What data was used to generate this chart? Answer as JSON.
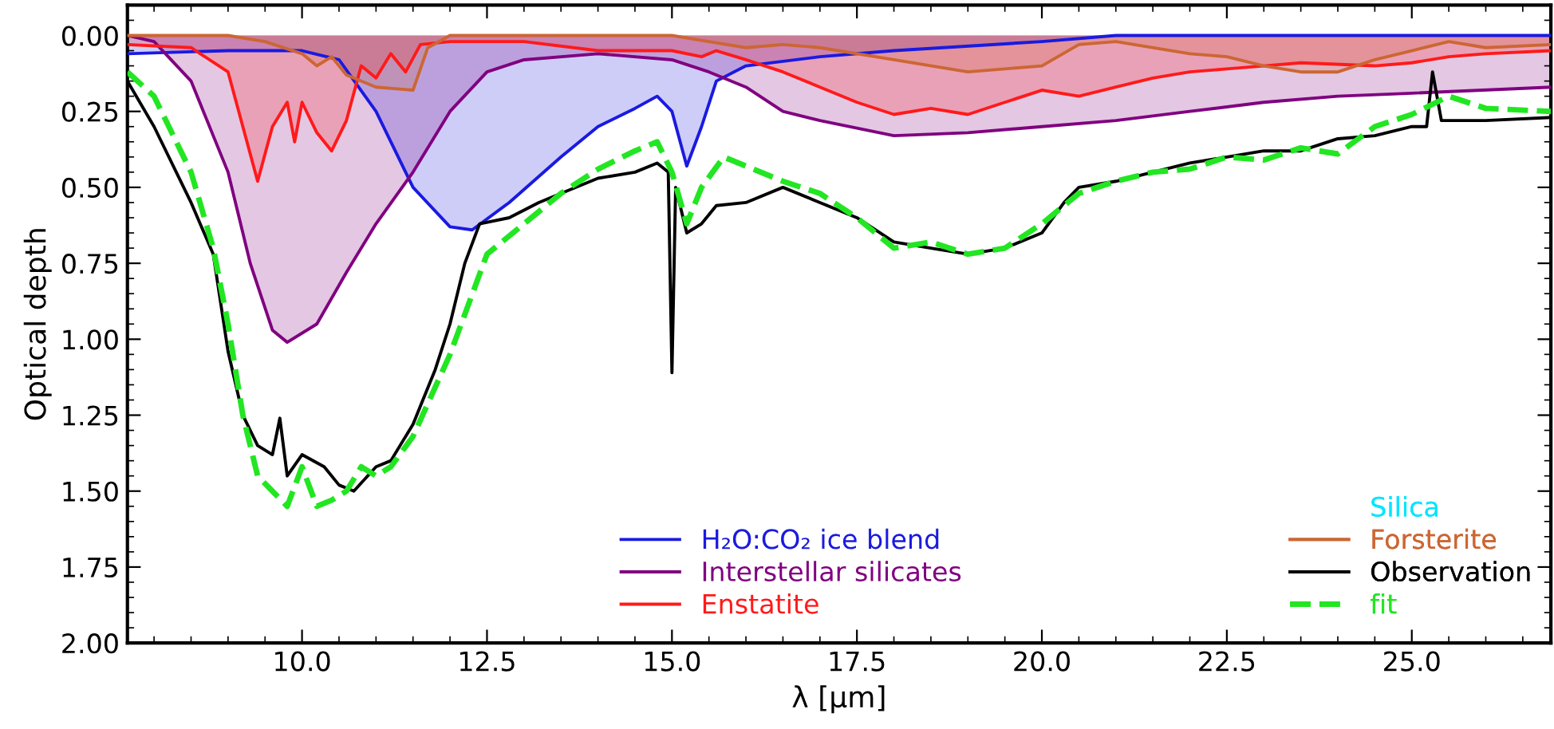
{
  "chart_data": {
    "type": "line",
    "xlabel": "λ [μm]",
    "ylabel": "Optical depth",
    "xlim": [
      7.64,
      26.88
    ],
    "ylim": [
      2.0,
      -0.1
    ],
    "xticks": [
      {
        "value": 10,
        "label": "10.0"
      },
      {
        "value": 12.5,
        "label": "12.5"
      },
      {
        "value": 15,
        "label": "15.0"
      },
      {
        "value": 17.5,
        "label": "17.5"
      },
      {
        "value": 20,
        "label": "20.0"
      },
      {
        "value": 22.5,
        "label": "22.5"
      },
      {
        "value": 25,
        "label": "25.0"
      }
    ],
    "yticks": [
      {
        "value": 0,
        "label": "0.00"
      },
      {
        "value": 0.25,
        "label": "0.25"
      },
      {
        "value": 0.5,
        "label": "0.50"
      },
      {
        "value": 0.75,
        "label": "0.75"
      },
      {
        "value": 1,
        "label": "1.00"
      },
      {
        "value": 1.25,
        "label": "1.25"
      },
      {
        "value": 1.5,
        "label": "1.50"
      },
      {
        "value": 1.75,
        "label": "1.75"
      },
      {
        "value": 2,
        "label": "2.00"
      }
    ],
    "grid": false,
    "legend": "bottom",
    "series": [
      {
        "name": "H₂O:CO₂ ice blend",
        "type": "area",
        "color": "#1a1ae0",
        "x": [
          7.64,
          9.0,
          10.0,
          10.5,
          11.0,
          11.5,
          12.0,
          12.3,
          12.8,
          13.5,
          14.0,
          14.5,
          14.8,
          15.0,
          15.2,
          15.4,
          15.6,
          16.0,
          17.0,
          18.0,
          20.0,
          21.0,
          26.88
        ],
        "values": [
          0.06,
          0.05,
          0.05,
          0.08,
          0.25,
          0.5,
          0.63,
          0.64,
          0.55,
          0.4,
          0.3,
          0.24,
          0.2,
          0.25,
          0.43,
          0.3,
          0.15,
          0.1,
          0.07,
          0.05,
          0.02,
          0.0,
          0.0
        ]
      },
      {
        "name": "Interstellar silicates",
        "type": "area",
        "color": "#800080",
        "x": [
          7.64,
          8.0,
          8.5,
          9.0,
          9.3,
          9.6,
          9.8,
          10.2,
          10.6,
          11.0,
          11.5,
          12.0,
          12.5,
          13.0,
          14.0,
          15.0,
          15.5,
          16.0,
          16.5,
          17.0,
          18.0,
          19.0,
          20.0,
          21.0,
          22.0,
          23.0,
          24.0,
          25.0,
          26.88
        ],
        "values": [
          0.0,
          0.02,
          0.15,
          0.45,
          0.75,
          0.97,
          1.01,
          0.95,
          0.78,
          0.62,
          0.45,
          0.25,
          0.12,
          0.08,
          0.06,
          0.08,
          0.12,
          0.17,
          0.25,
          0.28,
          0.33,
          0.32,
          0.3,
          0.28,
          0.25,
          0.22,
          0.2,
          0.19,
          0.17
        ]
      },
      {
        "name": "Enstatite",
        "type": "area",
        "color": "#ff1a1a",
        "x": [
          7.64,
          8.5,
          9.0,
          9.2,
          9.4,
          9.6,
          9.8,
          9.9,
          10.0,
          10.2,
          10.4,
          10.6,
          10.8,
          11.0,
          11.2,
          11.4,
          11.6,
          12.0,
          13.0,
          14.0,
          15.0,
          15.4,
          15.6,
          16.0,
          16.5,
          17.0,
          17.5,
          18.0,
          18.5,
          19.0,
          19.5,
          20.0,
          20.5,
          21.0,
          21.5,
          22.0,
          22.5,
          23.0,
          23.5,
          24.5,
          25.0,
          25.5,
          26.0,
          26.88
        ],
        "values": [
          0.03,
          0.04,
          0.12,
          0.3,
          0.48,
          0.3,
          0.22,
          0.35,
          0.22,
          0.32,
          0.38,
          0.28,
          0.1,
          0.14,
          0.06,
          0.12,
          0.03,
          0.02,
          0.02,
          0.05,
          0.05,
          0.07,
          0.05,
          0.08,
          0.12,
          0.17,
          0.22,
          0.26,
          0.24,
          0.26,
          0.22,
          0.18,
          0.2,
          0.17,
          0.14,
          0.12,
          0.11,
          0.1,
          0.09,
          0.1,
          0.09,
          0.07,
          0.06,
          0.05
        ]
      },
      {
        "name": "Silica",
        "type": "area",
        "color": "#00e5ff"
      },
      {
        "name": "Forsterite",
        "type": "area",
        "color": "#cc6633",
        "x": [
          7.64,
          9.0,
          9.5,
          10.0,
          10.2,
          10.4,
          10.6,
          11.0,
          11.5,
          11.7,
          12.0,
          14.0,
          15.0,
          15.5,
          16.0,
          16.5,
          17.0,
          18.0,
          19.0,
          20.0,
          20.5,
          21.0,
          22.0,
          22.5,
          23.0,
          23.5,
          24.0,
          24.5,
          25.0,
          25.5,
          26.0,
          26.88
        ],
        "values": [
          0.0,
          0.0,
          0.02,
          0.06,
          0.1,
          0.07,
          0.13,
          0.17,
          0.18,
          0.04,
          0.0,
          0.0,
          0.0,
          0.02,
          0.04,
          0.03,
          0.04,
          0.08,
          0.12,
          0.1,
          0.03,
          0.02,
          0.06,
          0.07,
          0.1,
          0.12,
          0.12,
          0.08,
          0.05,
          0.02,
          0.04,
          0.03
        ]
      },
      {
        "name": "Observation",
        "color": "#000000",
        "line_style": "solid",
        "x": [
          7.64,
          8.0,
          8.5,
          8.8,
          9.0,
          9.2,
          9.4,
          9.6,
          9.7,
          9.8,
          10.0,
          10.3,
          10.5,
          10.7,
          11.0,
          11.2,
          11.5,
          11.8,
          12.0,
          12.2,
          12.4,
          12.8,
          13.2,
          13.5,
          14.0,
          14.5,
          14.8,
          14.95,
          15.0,
          15.05,
          15.2,
          15.4,
          15.6,
          16.0,
          16.5,
          17.0,
          17.5,
          18.0,
          18.5,
          19.0,
          19.5,
          20.0,
          20.3,
          20.5,
          21.0,
          21.5,
          22.0,
          22.5,
          23.0,
          23.5,
          24.0,
          24.5,
          25.0,
          25.2,
          25.28,
          25.4,
          26.0,
          26.88
        ],
        "values": [
          0.15,
          0.3,
          0.55,
          0.72,
          1.04,
          1.25,
          1.35,
          1.38,
          1.26,
          1.45,
          1.38,
          1.42,
          1.48,
          1.5,
          1.42,
          1.4,
          1.28,
          1.1,
          0.95,
          0.75,
          0.62,
          0.6,
          0.55,
          0.52,
          0.47,
          0.45,
          0.42,
          0.45,
          1.11,
          0.5,
          0.65,
          0.62,
          0.56,
          0.55,
          0.5,
          0.55,
          0.6,
          0.68,
          0.7,
          0.72,
          0.7,
          0.65,
          0.55,
          0.5,
          0.48,
          0.45,
          0.42,
          0.4,
          0.38,
          0.38,
          0.34,
          0.33,
          0.3,
          0.3,
          0.12,
          0.28,
          0.28,
          0.27
        ]
      },
      {
        "name": "fit",
        "color": "#22e622",
        "line_style": "dashed",
        "x": [
          7.64,
          8.0,
          8.5,
          8.8,
          9.0,
          9.2,
          9.4,
          9.6,
          9.8,
          10.0,
          10.2,
          10.4,
          10.6,
          10.8,
          11.0,
          11.2,
          11.5,
          12.0,
          12.5,
          13.0,
          13.5,
          14.0,
          14.5,
          14.8,
          15.0,
          15.2,
          15.4,
          15.7,
          16.0,
          16.5,
          17.0,
          17.5,
          18.0,
          18.5,
          19.0,
          19.5,
          20.0,
          20.5,
          21.0,
          21.5,
          22.0,
          22.5,
          23.0,
          23.5,
          24.0,
          24.5,
          25.0,
          25.5,
          26.0,
          26.88
        ],
        "values": [
          0.12,
          0.2,
          0.45,
          0.7,
          0.95,
          1.25,
          1.45,
          1.5,
          1.55,
          1.42,
          1.55,
          1.53,
          1.5,
          1.42,
          1.45,
          1.42,
          1.32,
          1.05,
          0.72,
          0.62,
          0.52,
          0.44,
          0.38,
          0.35,
          0.45,
          0.62,
          0.5,
          0.4,
          0.43,
          0.48,
          0.52,
          0.6,
          0.7,
          0.68,
          0.72,
          0.7,
          0.62,
          0.52,
          0.48,
          0.45,
          0.44,
          0.4,
          0.41,
          0.37,
          0.39,
          0.3,
          0.26,
          0.2,
          0.24,
          0.25
        ]
      }
    ]
  }
}
